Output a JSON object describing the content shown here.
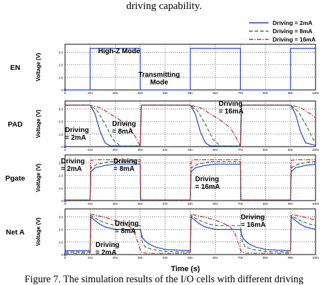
{
  "header_text": "driving capability.",
  "caption": "Figure 7. The simulation results of the I/O cells with different driving",
  "legend": {
    "placement": "top-right",
    "entries": [
      {
        "label": "Driving = 2mA",
        "color": "#1f3fd0",
        "dash": "solid"
      },
      {
        "label": "Driving = 8mA",
        "color": "#2a7a3a",
        "dash": "dashed"
      },
      {
        "label": "Driving = 16mA",
        "color": "#d02020",
        "dash": "dashdot"
      }
    ]
  },
  "x_axis": {
    "label": "Time (s)",
    "ticks": [
      "0",
      "10n",
      "20n",
      "30n",
      "40n",
      "50n",
      "60n",
      "70n",
      "80n",
      "90n",
      "100n"
    ]
  },
  "chart_data": [
    {
      "type": "line",
      "panel": "EN",
      "ylabel": "Voltage (V)",
      "ylim": [
        0,
        3.3
      ],
      "y_ticks": [
        "0",
        "1.0",
        "2.0",
        "3.0"
      ],
      "annotations": [
        "High-Z Mode",
        "Transmitting\nMode"
      ],
      "series": [
        {
          "name": "EN",
          "x": [
            0,
            10,
            10,
            30,
            30,
            50,
            50,
            70,
            70,
            90,
            90,
            100
          ],
          "values": [
            0,
            0,
            3.3,
            3.3,
            0,
            0,
            3.3,
            3.3,
            0,
            0,
            3.3,
            3.3
          ]
        }
      ]
    },
    {
      "type": "line",
      "panel": "PAD",
      "ylabel": "Voltage (V)",
      "ylim": [
        0,
        3.3
      ],
      "y_ticks": [
        "0",
        "1.0",
        "2.0",
        "3.0"
      ],
      "annotations": [
        "Driving\n= 2mA",
        "Driving\n= 8mA",
        "Driving\n= 16mA"
      ],
      "series": [
        {
          "name": "Driving = 2mA",
          "x": [
            0,
            10,
            12,
            14,
            16,
            18,
            30,
            30.5,
            32,
            34,
            50,
            52,
            54,
            56,
            58,
            70,
            70.5,
            72,
            74,
            90,
            92,
            94,
            96,
            100
          ],
          "values": [
            3.3,
            3.3,
            2.6,
            1.2,
            0.3,
            0.05,
            0.05,
            3.3,
            3.3,
            3.3,
            3.3,
            2.6,
            1.2,
            0.3,
            0.05,
            0.05,
            3.3,
            3.3,
            3.3,
            3.3,
            2.6,
            1.2,
            0.3,
            0.1
          ]
        },
        {
          "name": "Driving = 8mA",
          "x": [
            0,
            10,
            13,
            16,
            19,
            22,
            30,
            30.5,
            32,
            50,
            53,
            56,
            59,
            62,
            70,
            70.5,
            72,
            90,
            93,
            96,
            99,
            100
          ],
          "values": [
            3.3,
            3.3,
            2.8,
            1.8,
            0.6,
            0.05,
            0.05,
            3.3,
            3.3,
            3.3,
            2.8,
            1.8,
            0.6,
            0.05,
            0.05,
            3.3,
            3.3,
            3.3,
            2.8,
            1.8,
            0.6,
            0.4
          ]
        },
        {
          "name": "Driving = 16mA",
          "x": [
            0,
            10,
            14,
            18,
            22,
            26,
            28,
            30,
            30.5,
            32,
            50,
            54,
            58,
            62,
            66,
            68,
            70,
            70.5,
            72,
            90,
            94,
            98,
            100
          ],
          "values": [
            3.3,
            3.3,
            3.1,
            2.6,
            2.1,
            1.5,
            0.8,
            0.05,
            3.3,
            3.3,
            3.3,
            3.1,
            2.6,
            2.1,
            1.5,
            0.8,
            0.05,
            3.3,
            3.3,
            3.3,
            3.1,
            2.6,
            2.3
          ]
        }
      ]
    },
    {
      "type": "line",
      "panel": "Pgate",
      "ylabel": "Voltage (V)",
      "ylim": [
        0,
        3.3
      ],
      "y_ticks": [
        "0",
        "1.0",
        "2.0",
        "3.0"
      ],
      "annotations": [
        "Driving\n= 2mA",
        "Driving\n= 8mA",
        "Driving\n= 16mA"
      ],
      "series": [
        {
          "name": "Driving = 2mA",
          "x": [
            0,
            10,
            10.3,
            12,
            16,
            20,
            30,
            30.2,
            50,
            50.3,
            52,
            56,
            60,
            70,
            70.2,
            90,
            90.3,
            92,
            96,
            100
          ],
          "values": [
            0.05,
            0.05,
            2.3,
            2.6,
            2.8,
            2.9,
            2.9,
            0.05,
            0.05,
            2.3,
            2.6,
            2.8,
            2.9,
            2.9,
            0.05,
            0.05,
            2.3,
            2.6,
            2.8,
            2.9
          ]
        },
        {
          "name": "Driving = 8mA",
          "x": [
            0,
            10,
            10.3,
            13,
            18,
            30,
            30.2,
            50,
            50.3,
            53,
            58,
            70,
            70.2,
            90,
            90.3,
            93,
            98,
            100
          ],
          "values": [
            0.05,
            0.05,
            2.6,
            2.9,
            3.1,
            3.1,
            0.05,
            0.05,
            2.6,
            2.9,
            3.1,
            3.1,
            0.05,
            0.05,
            2.6,
            2.9,
            3.1,
            3.1
          ]
        },
        {
          "name": "Driving = 16mA",
          "x": [
            0,
            10,
            10.3,
            12,
            30,
            30.2,
            50,
            50.3,
            52,
            70,
            70.2,
            90,
            90.3,
            92,
            100
          ],
          "values": [
            0.05,
            0.05,
            3.2,
            3.25,
            3.25,
            0.05,
            0.05,
            3.2,
            3.25,
            3.25,
            0.05,
            0.05,
            3.2,
            3.25,
            3.25
          ]
        }
      ]
    },
    {
      "type": "line",
      "panel": "Net A",
      "ylabel": "Voltage (V)",
      "ylim": [
        0,
        3.3
      ],
      "y_ticks": [
        "0",
        "1.0",
        "2.0",
        "3.0"
      ],
      "annotations": [
        "Driving\n= 8mA",
        "Driving\n= 2mA",
        "Driving\n= 16mA"
      ],
      "series": [
        {
          "name": "Driving = 2mA",
          "x": [
            0,
            10,
            10.3,
            12,
            14,
            16,
            18,
            20,
            30,
            31,
            33,
            36,
            40,
            50,
            50.3,
            52,
            54,
            56,
            58,
            60,
            70,
            71,
            73,
            76,
            80,
            90,
            90.3,
            92,
            94,
            96,
            98,
            100
          ],
          "values": [
            0.3,
            0.3,
            3.0,
            2.7,
            2.4,
            2.2,
            2.1,
            2.0,
            2.0,
            1.3,
            0.9,
            0.6,
            0.4,
            0.3,
            3.0,
            2.7,
            2.4,
            2.2,
            2.1,
            2.0,
            2.0,
            1.3,
            0.9,
            0.6,
            0.4,
            0.3,
            3.0,
            2.7,
            2.4,
            2.2,
            2.1,
            2.0
          ]
        },
        {
          "name": "Driving = 8mA",
          "x": [
            0,
            10,
            10.3,
            12,
            15,
            18,
            21,
            30,
            30.8,
            32,
            35,
            40,
            50,
            50.3,
            52,
            55,
            58,
            61,
            70,
            70.8,
            72,
            75,
            80,
            90,
            90.3,
            92,
            95,
            98,
            100
          ],
          "values": [
            0.2,
            0.2,
            3.1,
            2.9,
            2.6,
            2.4,
            2.3,
            2.3,
            1.0,
            0.6,
            0.4,
            0.25,
            0.2,
            3.1,
            2.9,
            2.6,
            2.4,
            2.3,
            2.3,
            1.0,
            0.6,
            0.4,
            0.25,
            0.2,
            3.1,
            2.9,
            2.6,
            2.4,
            2.3
          ]
        },
        {
          "name": "Driving = 16mA",
          "x": [
            0,
            10,
            10.3,
            14,
            18,
            22,
            26,
            28,
            30,
            30.5,
            32,
            35,
            50,
            50.3,
            54,
            58,
            62,
            66,
            68,
            70,
            70.5,
            72,
            75,
            90,
            90.3,
            94,
            98,
            100
          ],
          "values": [
            0.1,
            0.1,
            3.2,
            3.05,
            2.85,
            2.6,
            2.2,
            1.6,
            0.4,
            0.2,
            0.12,
            0.1,
            0.1,
            3.2,
            3.05,
            2.85,
            2.6,
            2.2,
            1.6,
            0.4,
            0.2,
            0.12,
            0.1,
            0.1,
            3.2,
            3.05,
            2.85,
            2.75
          ]
        }
      ]
    }
  ]
}
